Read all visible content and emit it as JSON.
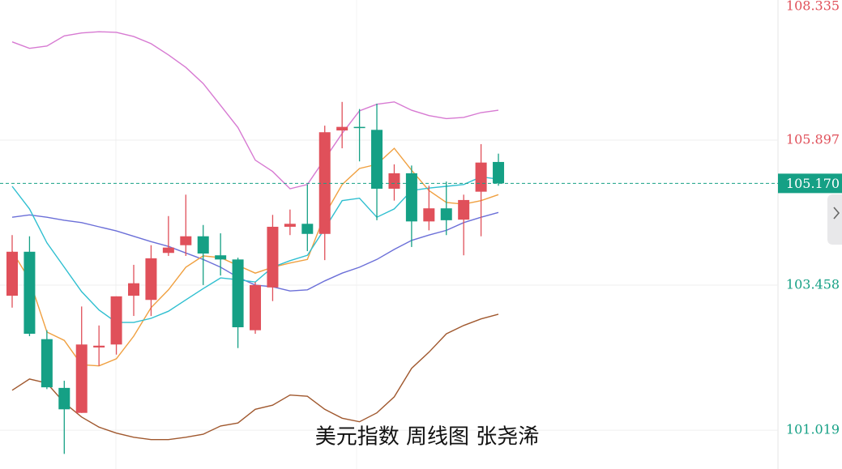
{
  "chart_data": {
    "type": "candlestick",
    "title": "美元指数 周线图  张尧浠",
    "categories": [
      null,
      null,
      null,
      null,
      null,
      null,
      null,
      null,
      null,
      null,
      null,
      null,
      null,
      null,
      null,
      null,
      null,
      null,
      null,
      null,
      null,
      null,
      null,
      null,
      null,
      null,
      null,
      null,
      null
    ],
    "open": [
      103.28,
      104.02,
      102.55,
      101.73,
      101.31,
      102.41,
      102.46,
      103.28,
      103.21,
      104.0,
      104.13,
      104.28,
      103.96,
      103.89,
      102.7,
      103.42,
      104.44,
      104.49,
      104.32,
      106.06,
      106.12,
      106.07,
      105.08,
      105.34,
      104.53,
      104.75,
      104.56,
      105.03,
      105.53
    ],
    "high": [
      104.3,
      104.28,
      102.7,
      101.85,
      103.1,
      102.78,
      103.27,
      103.8,
      104.13,
      104.62,
      104.98,
      104.47,
      104.33,
      103.92,
      103.51,
      104.64,
      104.73,
      105.15,
      106.14,
      106.54,
      106.42,
      106.51,
      105.49,
      105.47,
      105.13,
      105.2,
      104.98,
      105.83,
      105.67
    ],
    "low": [
      103.08,
      102.6,
      101.71,
      100.62,
      101.31,
      102.1,
      102.29,
      102.94,
      102.94,
      103.95,
      103.95,
      103.46,
      103.62,
      102.4,
      102.64,
      103.19,
      104.3,
      104.03,
      103.88,
      105.76,
      105.54,
      104.55,
      104.88,
      104.1,
      104.38,
      104.3,
      103.96,
      104.28,
      105.13
    ],
    "close": [
      104.02,
      102.64,
      101.74,
      101.37,
      102.46,
      102.44,
      103.27,
      103.49,
      103.91,
      104.09,
      104.28,
      103.99,
      103.89,
      102.75,
      103.46,
      104.44,
      104.49,
      104.32,
      106.03,
      106.12,
      106.1,
      105.08,
      105.34,
      104.53,
      104.75,
      104.55,
      104.89,
      105.52,
      105.17
    ],
    "up_color": "#e0505a",
    "down_color": "#15a085",
    "lines": [
      {
        "color": "#d77ad2",
        "values": [
          107.55,
          107.44,
          107.48,
          107.65,
          107.7,
          107.72,
          107.71,
          107.64,
          107.52,
          107.33,
          107.12,
          106.85,
          106.48,
          106.11,
          105.56,
          105.37,
          105.08,
          105.15,
          105.58,
          106.01,
          106.39,
          106.5,
          106.54,
          106.4,
          106.31,
          106.26,
          106.28,
          106.36,
          106.4
        ]
      },
      {
        "color": "#6b6fd8",
        "values": [
          104.6,
          104.64,
          104.6,
          104.55,
          104.51,
          104.44,
          104.37,
          104.28,
          104.19,
          104.11,
          104.0,
          103.89,
          103.76,
          103.59,
          103.46,
          103.43,
          103.36,
          103.38,
          103.53,
          103.66,
          103.76,
          103.89,
          104.06,
          104.21,
          104.3,
          104.38,
          104.51,
          104.6,
          104.68
        ]
      },
      {
        "color": "#a0582e",
        "values": [
          101.69,
          101.88,
          101.81,
          101.48,
          101.24,
          101.07,
          100.97,
          100.9,
          100.86,
          100.86,
          100.9,
          100.95,
          101.09,
          101.14,
          101.37,
          101.44,
          101.61,
          101.59,
          101.37,
          101.22,
          101.16,
          101.31,
          101.58,
          102.06,
          102.33,
          102.64,
          102.78,
          102.89,
          102.97
        ]
      },
      {
        "color": "#f0a040",
        "values": [
          104.03,
          103.55,
          102.67,
          102.53,
          102.12,
          102.1,
          102.22,
          102.6,
          103.08,
          103.38,
          103.76,
          103.95,
          103.92,
          103.79,
          103.66,
          103.76,
          103.83,
          103.89,
          104.64,
          105.15,
          105.42,
          105.49,
          105.76,
          105.39,
          105.05,
          104.85,
          104.82,
          104.88,
          104.98
        ]
      },
      {
        "color": "#2fbfd0",
        "values": [
          105.12,
          104.74,
          104.17,
          103.76,
          103.35,
          103.04,
          102.83,
          102.83,
          102.9,
          103.02,
          103.21,
          103.4,
          103.58,
          103.55,
          103.51,
          103.76,
          103.87,
          103.96,
          104.41,
          104.88,
          104.92,
          104.6,
          104.74,
          105.05,
          105.09,
          105.12,
          105.15,
          105.28,
          105.24
        ]
      }
    ],
    "ylim": [
      100.366,
      108.254
    ],
    "yticks": [
      108.335,
      105.897,
      103.458,
      101.019
    ],
    "last_price": {
      "value": 105.17,
      "label": "105.170"
    },
    "grid": true
  }
}
